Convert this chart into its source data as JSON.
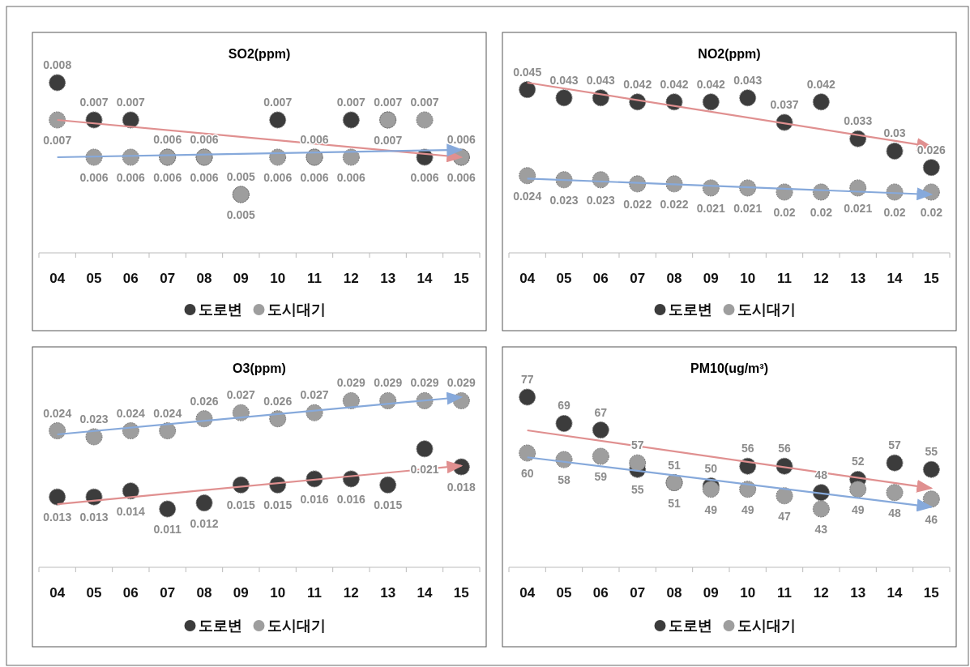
{
  "chart_data": [
    {
      "type": "scatter",
      "title": "SO2(ppm)",
      "categories": [
        "04",
        "05",
        "06",
        "07",
        "08",
        "09",
        "10",
        "11",
        "12",
        "13",
        "14",
        "15"
      ],
      "marker": "circle",
      "legend": "bottom",
      "grid": false,
      "series": [
        {
          "name": "도로변",
          "color": "#3c3c3c",
          "values": [
            0.008,
            0.007,
            0.007,
            0.006,
            0.006,
            0.005,
            0.007,
            0.006,
            0.007,
            0.007,
            0.006,
            0.006
          ],
          "value_labels": [
            "0.008",
            "0.007",
            "0.007",
            "0.006",
            "0.006",
            "0.005",
            "0.007",
            "0.006",
            "0.007",
            "0.007",
            "0.006",
            "0.006"
          ]
        },
        {
          "name": "도시대기",
          "color": "#9e9e9e",
          "values": [
            0.007,
            0.006,
            0.006,
            0.006,
            0.006,
            0.005,
            0.006,
            0.006,
            0.006,
            0.007,
            0.007,
            0.006
          ],
          "value_labels": [
            "0.007",
            "0.006",
            "0.006",
            "0.006",
            "0.006",
            "0.005",
            "0.006",
            "0.006",
            "0.006",
            "0.007",
            "0.007",
            "0.006"
          ]
        },
        {
          "type": "line",
          "marker": "none",
          "color": "#e09090",
          "x": [
            "04",
            "15"
          ],
          "values": [
            0.007,
            0.006
          ]
        },
        {
          "type": "line",
          "marker": "none",
          "color": "#86a9db",
          "x": [
            "04",
            "15"
          ],
          "values": [
            0.006,
            0.0062
          ]
        }
      ]
    },
    {
      "type": "scatter",
      "title": "NO2(ppm)",
      "categories": [
        "04",
        "05",
        "06",
        "07",
        "08",
        "09",
        "10",
        "11",
        "12",
        "13",
        "14",
        "15"
      ],
      "marker": "circle",
      "legend": "bottom",
      "grid": false,
      "series": [
        {
          "name": "도로변",
          "color": "#3c3c3c",
          "values": [
            0.045,
            0.043,
            0.043,
            0.042,
            0.042,
            0.042,
            0.043,
            0.037,
            0.042,
            0.033,
            0.03,
            0.026
          ],
          "value_labels": [
            "0.045",
            "0.043",
            "0.043",
            "0.042",
            "0.042",
            "0.042",
            "0.043",
            "0.037",
            "0.042",
            "0.033",
            "0.03",
            "0.026"
          ]
        },
        {
          "name": "도시대기",
          "color": "#9e9e9e",
          "values": [
            0.024,
            0.023,
            0.023,
            0.022,
            0.022,
            0.021,
            0.021,
            0.02,
            0.02,
            0.021,
            0.02,
            0.02
          ],
          "value_labels": [
            "0.024",
            "0.023",
            "0.023",
            "0.022",
            "0.022",
            "0.021",
            "0.021",
            "0.02",
            "0.02",
            "0.021",
            "0.02",
            "0.02"
          ]
        },
        {
          "type": "line",
          "marker": "none",
          "color": "#e09090",
          "x": [
            "04",
            "15"
          ],
          "values": [
            0.0467,
            0.0311
          ]
        },
        {
          "type": "line",
          "marker": "none",
          "color": "#86a9db",
          "x": [
            "04",
            "15"
          ],
          "values": [
            0.0233,
            0.0194
          ]
        }
      ]
    },
    {
      "type": "scatter",
      "title": "O3(ppm)",
      "categories": [
        "04",
        "05",
        "06",
        "07",
        "08",
        "09",
        "10",
        "11",
        "12",
        "13",
        "14",
        "15"
      ],
      "marker": "circle",
      "legend": "bottom",
      "grid": false,
      "series": [
        {
          "name": "도로변",
          "color": "#3c3c3c",
          "values": [
            0.013,
            0.013,
            0.014,
            0.011,
            0.012,
            0.015,
            0.015,
            0.016,
            0.016,
            0.015,
            0.021,
            0.018
          ],
          "value_labels": [
            "0.013",
            "0.013",
            "0.014",
            "0.011",
            "0.012",
            "0.015",
            "0.015",
            "0.016",
            "0.016",
            "0.015",
            "0.021",
            "0.018"
          ]
        },
        {
          "name": "도시대기",
          "color": "#9e9e9e",
          "values": [
            0.024,
            0.023,
            0.024,
            0.024,
            0.026,
            0.027,
            0.026,
            0.027,
            0.029,
            0.029,
            0.029,
            0.029
          ],
          "value_labels": [
            "0.024",
            "0.023",
            "0.024",
            "0.024",
            "0.026",
            "0.027",
            "0.026",
            "0.027",
            "0.029",
            "0.029",
            "0.029",
            "0.029"
          ]
        },
        {
          "type": "line",
          "marker": "none",
          "color": "#e09090",
          "x": [
            "04",
            "15"
          ],
          "values": [
            0.0118,
            0.0182
          ]
        },
        {
          "type": "line",
          "marker": "none",
          "color": "#86a9db",
          "x": [
            "04",
            "15"
          ],
          "values": [
            0.0234,
            0.0296
          ]
        }
      ]
    },
    {
      "type": "scatter",
      "title": "PM10(ug/m³)",
      "categories": [
        "04",
        "05",
        "06",
        "07",
        "08",
        "09",
        "10",
        "11",
        "12",
        "13",
        "14",
        "15"
      ],
      "marker": "circle",
      "legend": "bottom",
      "grid": false,
      "series": [
        {
          "name": "도로변",
          "color": "#3c3c3c",
          "values": [
            77,
            69,
            67,
            55,
            51,
            50,
            56,
            56,
            48,
            52,
            57,
            55
          ],
          "value_labels": [
            "77",
            "69",
            "67",
            "55",
            "51",
            "50",
            "56",
            "56",
            "48",
            "52",
            "57",
            "55"
          ]
        },
        {
          "name": "도시대기",
          "color": "#9e9e9e",
          "values": [
            60,
            58,
            59,
            57,
            51,
            49,
            49,
            47,
            43,
            49,
            48,
            46
          ],
          "value_labels": [
            "60",
            "58",
            "59",
            "57",
            "51",
            "49",
            "49",
            "47",
            "43",
            "49",
            "48",
            "46"
          ]
        },
        {
          "type": "line",
          "marker": "none",
          "color": "#e09090",
          "x": [
            "04",
            "15"
          ],
          "values": [
            66.9,
            49.3
          ]
        },
        {
          "type": "line",
          "marker": "none",
          "color": "#86a9db",
          "x": [
            "04",
            "15"
          ],
          "values": [
            58.7,
            43.6
          ]
        }
      ]
    }
  ]
}
